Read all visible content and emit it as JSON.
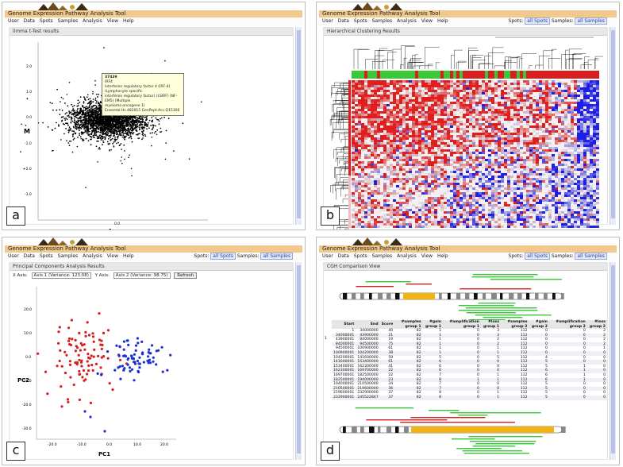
{
  "app": {
    "title": "Genome Expression Pathway Analysis Tool",
    "menu": [
      "User",
      "Data",
      "Spots",
      "Samples",
      "Analysis",
      "View",
      "Help"
    ],
    "spots_label": "Spots:",
    "spots_value": "all Spots",
    "samples_label": "Samples:",
    "samples_value": "all Samples"
  },
  "colors": {
    "accent_bar": "#f1c98d",
    "red": "#d81e1e",
    "blue": "#1f2fd1",
    "green": "#38c838",
    "orange": "#f2b415"
  },
  "panels": {
    "a": {
      "label": "a",
      "section": "limma t-Test results",
      "tooltip": [
        "37439",
        "IRF4",
        "Interferon regulatory factor 4 (IRF-4) (Lymphocyte specific",
        "interferon regulatory factor) (LSIRF) (NF-EM5) (Multiple",
        "myeloma oncogene 1)",
        "Ensembl:Hs.482015  GenPept:Acc.Q15306"
      ],
      "y_label": "M",
      "x_label": "A",
      "y_ticks": [
        "2.0",
        "1.0",
        "0.0",
        "-1.0",
        "-2.0",
        "-3.0"
      ],
      "x_ticks": [
        "0.0"
      ]
    },
    "b": {
      "label": "b",
      "section": "Hierarchical Clustering Results"
    },
    "c": {
      "label": "c",
      "section": "Principal Components Analysis Results",
      "x_axis_label": "X Axis:",
      "x_axis_value": "Axis 1 (Variance: 123.08)",
      "y_axis_label": "Y Axis:",
      "y_axis_value": "Axis 2 (Variance: 98.75)",
      "refresh": "Refresh",
      "y_label": "PC2",
      "x_label": "PC1",
      "y_ticks": [
        "20.0",
        "10.0",
        "0.0",
        "-10.0",
        "-20.0",
        "-30.0"
      ],
      "x_ticks": [
        "-20.0",
        "-10.0",
        "0.0",
        "10.0",
        "20.0"
      ]
    },
    "d": {
      "label": "d",
      "section": "CGH Comparison View",
      "row_marker": "1",
      "table_headers": [
        "Start",
        "End",
        "Score",
        "#samples group 1",
        "#gain group 1",
        "#amplification group 1",
        "#loss group 1",
        "#samples group 2",
        "#gain group 2",
        "#amplification group 2",
        "#loss group 2"
      ],
      "table_rows": [
        [
          "1",
          "34000000",
          "40",
          "82",
          "1",
          "0",
          "3",
          "112",
          "0",
          "0",
          "2"
        ],
        [
          "34000001",
          "43900000",
          "21",
          "82",
          "1",
          "0",
          "3",
          "112",
          "0",
          "0",
          "2"
        ],
        [
          "43900001",
          "84000000",
          "19",
          "82",
          "1",
          "0",
          "2",
          "112",
          "0",
          "0",
          "2"
        ],
        [
          "84000001",
          "94500000",
          "75",
          "82",
          "1",
          "0",
          "2",
          "112",
          "0",
          "0",
          "2"
        ],
        [
          "94500001",
          "100900000",
          "61",
          "82",
          "1",
          "0",
          "1",
          "112",
          "0",
          "0",
          "1"
        ],
        [
          "100900001",
          "104200000",
          "38",
          "82",
          "1",
          "0",
          "1",
          "112",
          "0",
          "0",
          "0"
        ],
        [
          "104200001",
          "141600000",
          "59",
          "82",
          "5",
          "0",
          "5",
          "112",
          "4",
          "0",
          "0"
        ],
        [
          "141600001",
          "153400000",
          "61",
          "82",
          "6",
          "0",
          "0",
          "112",
          "5",
          "0",
          "0"
        ],
        [
          "153400001",
          "162300000",
          "41",
          "82",
          "6",
          "0",
          "0",
          "112",
          "5",
          "1",
          "0"
        ],
        [
          "162300001",
          "169700000",
          "22",
          "82",
          "6",
          "0",
          "0",
          "112",
          "6",
          "1",
          "0"
        ],
        [
          "169700001",
          "182500000",
          "22",
          "82",
          "7",
          "0",
          "1",
          "112",
          "6",
          "1",
          "0"
        ],
        [
          "182500001",
          "194000000",
          "23",
          "82",
          "8",
          "1",
          "1",
          "112",
          "6",
          "1",
          "0"
        ],
        [
          "194000001",
          "210500000",
          "34",
          "82",
          "7",
          "0",
          "0",
          "112",
          "5",
          "0",
          "0"
        ],
        [
          "210500001",
          "219600000",
          "36",
          "82",
          "7",
          "0",
          "0",
          "112",
          "5",
          "0",
          "0"
        ],
        [
          "219600001",
          "232900000",
          "37",
          "82",
          "8",
          "0",
          "1",
          "112",
          "5",
          "0",
          "0"
        ],
        [
          "232900001",
          "245522847",
          "37",
          "82",
          "8",
          "0",
          "1",
          "112",
          "5",
          "0",
          "0"
        ]
      ]
    }
  }
}
